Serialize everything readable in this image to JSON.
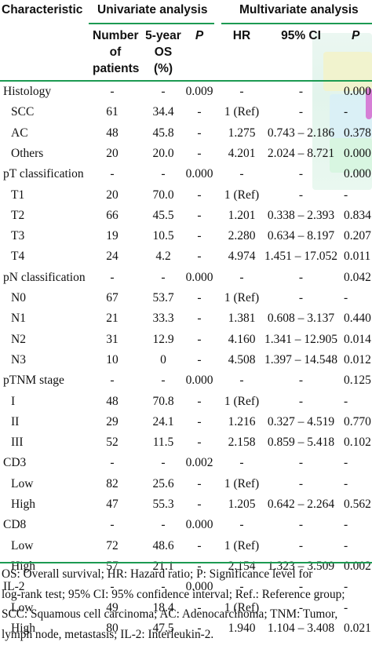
{
  "header": {
    "characteristic": "Characteristic",
    "univariate": "Univariate analysis",
    "multivariate": "Multivariate analysis",
    "num_patients": [
      "Number",
      "of",
      "patients"
    ],
    "os": [
      "5-year",
      "OS",
      "(%)"
    ],
    "p": "P",
    "hr": "HR",
    "ci": "95% CI",
    "p2": "P"
  },
  "rows": [
    {
      "label": "Histology",
      "sub": false,
      "n": "-",
      "os": "-",
      "p": "0.009",
      "hr": "-",
      "ci": "-",
      "p2": "0.000"
    },
    {
      "label": "SCC",
      "sub": true,
      "n": "61",
      "os": "34.4",
      "p": "-",
      "hr": "1 (Ref)",
      "ci": "-",
      "p2": "-"
    },
    {
      "label": "AC",
      "sub": true,
      "n": "48",
      "os": "45.8",
      "p": "-",
      "hr": "1.275",
      "ci": "0.743 – 2.186",
      "p2": "0.378"
    },
    {
      "label": "Others",
      "sub": true,
      "n": "20",
      "os": "20.0",
      "p": "-",
      "hr": "4.201",
      "ci": "2.024 – 8.721",
      "p2": "0.000"
    },
    {
      "label": "pT classification",
      "sub": false,
      "n": "-",
      "os": "-",
      "p": "0.000",
      "hr": "-",
      "ci": "-",
      "p2": "0.000"
    },
    {
      "label": "T1",
      "sub": true,
      "n": "20",
      "os": "70.0",
      "p": "-",
      "hr": "1 (Ref)",
      "ci": "-",
      "p2": "-"
    },
    {
      "label": "T2",
      "sub": true,
      "n": "66",
      "os": "45.5",
      "p": "-",
      "hr": "1.201",
      "ci": "0.338 – 2.393",
      "p2": "0.834"
    },
    {
      "label": "T3",
      "sub": true,
      "n": "19",
      "os": "10.5",
      "p": "-",
      "hr": "2.280",
      "ci": "0.634 – 8.197",
      "p2": "0.207"
    },
    {
      "label": "T4",
      "sub": true,
      "n": "24",
      "os": "4.2",
      "p": "-",
      "hr": "4.974",
      "ci": "1.451 – 17.052",
      "p2": "0.011"
    },
    {
      "label": "pN classification",
      "sub": false,
      "n": "-",
      "os": "-",
      "p": "0.000",
      "hr": "-",
      "ci": "-",
      "p2": "0.042"
    },
    {
      "label": "N0",
      "sub": true,
      "n": "67",
      "os": "53.7",
      "p": "-",
      "hr": "1 (Ref)",
      "ci": "-",
      "p2": "-"
    },
    {
      "label": "N1",
      "sub": true,
      "n": "21",
      "os": "33.3",
      "p": "-",
      "hr": "1.381",
      "ci": "0.608 – 3.137",
      "p2": "0.440"
    },
    {
      "label": "N2",
      "sub": true,
      "n": "31",
      "os": "12.9",
      "p": "-",
      "hr": "4.160",
      "ci": "1.341 – 12.905",
      "p2": "0.014"
    },
    {
      "label": "N3",
      "sub": true,
      "n": "10",
      "os": "0",
      "p": "-",
      "hr": "4.508",
      "ci": "1.397 – 14.548",
      "p2": "0.012"
    },
    {
      "label": "pTNM stage",
      "sub": false,
      "n": "-",
      "os": "-",
      "p": "0.000",
      "hr": "-",
      "ci": "-",
      "p2": "0.125"
    },
    {
      "label": "I",
      "sub": true,
      "n": "48",
      "os": "70.8",
      "p": "-",
      "hr": "1 (Ref)",
      "ci": "-",
      "p2": "-"
    },
    {
      "label": "II",
      "sub": true,
      "n": "29",
      "os": "24.1",
      "p": "-",
      "hr": "1.216",
      "ci": "0.327 – 4.519",
      "p2": "0.770"
    },
    {
      "label": "III",
      "sub": true,
      "n": "52",
      "os": "11.5",
      "p": "-",
      "hr": "2.158",
      "ci": "0.859 – 5.418",
      "p2": "0.102"
    },
    {
      "label": "CD3",
      "sub": false,
      "n": "-",
      "os": "-",
      "p": "0.002",
      "hr": "-",
      "ci": "-",
      "p2": "-"
    },
    {
      "label": "Low",
      "sub": true,
      "n": "82",
      "os": "25.6",
      "p": "-",
      "hr": "1 (Ref)",
      "ci": "-",
      "p2": "-"
    },
    {
      "label": "High",
      "sub": true,
      "n": "47",
      "os": "55.3",
      "p": "-",
      "hr": "1.205",
      "ci": "0.642 – 2.264",
      "p2": "0.562"
    },
    {
      "label": "CD8",
      "sub": false,
      "n": "-",
      "os": "-",
      "p": "0.000",
      "hr": "-",
      "ci": "-",
      "p2": "-"
    },
    {
      "label": "Low",
      "sub": true,
      "n": "72",
      "os": "48.6",
      "p": "-",
      "hr": "1 (Ref)",
      "ci": "-",
      "p2": "-"
    },
    {
      "label": "High",
      "sub": true,
      "n": "57",
      "os": "21.1",
      "p": "-",
      "hr": "2.154",
      "ci": "1.323 – 3.509",
      "p2": "0.002"
    },
    {
      "label": "IL-2",
      "sub": false,
      "n": "-",
      "os": "-",
      "p": "0.000",
      "hr": "-",
      "ci": "-",
      "p2": "-"
    },
    {
      "label": "Low",
      "sub": true,
      "n": "49",
      "os": "18.4",
      "p": "-",
      "hr": "1 (Ref)",
      "ci": "-",
      "p2": "-"
    },
    {
      "label": "High",
      "sub": true,
      "n": "80",
      "os": "47.5",
      "p": "-",
      "hr": "1.940",
      "ci": "1.104 – 3.408",
      "p2": "0.021"
    }
  ],
  "footnote": [
    "OS: Overall survival; HR: Hazard ratio; P: Significance level for",
    "log-rank test; 95% CI: 95% confidence interval; Ref.: Reference group;",
    "SCC: Squamous cell carcinoma; AC: Adenocarcinoma; TNM: Tumor,",
    "lymph node, metastasis; IL-2: Interleukin-2."
  ],
  "colors": {
    "rule": "#1c9a52"
  }
}
